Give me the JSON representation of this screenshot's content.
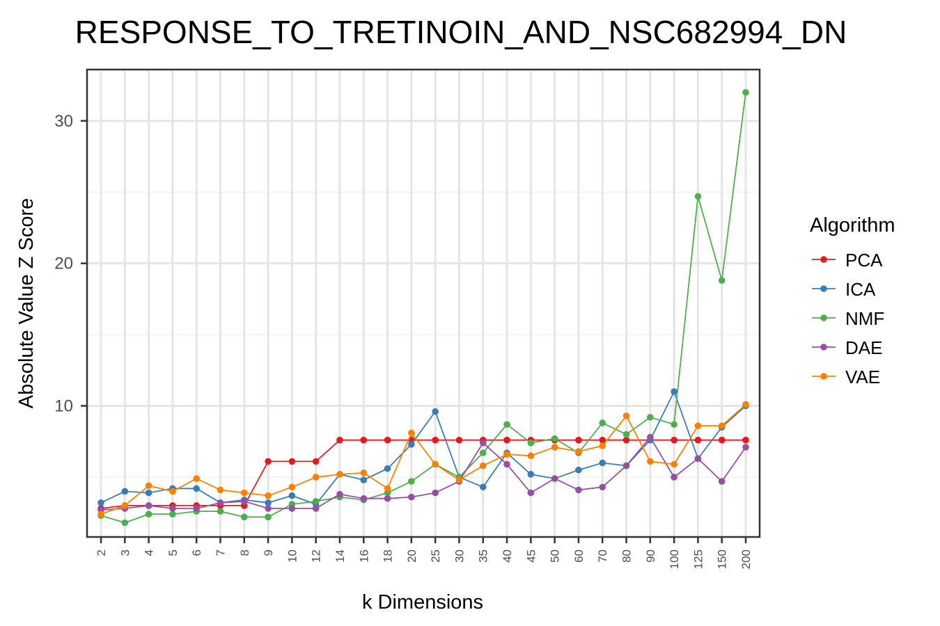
{
  "chart_data": {
    "type": "line",
    "title": "RESPONSE_TO_TRETINOIN_AND_NSC682994_DN",
    "xlabel": "k Dimensions",
    "ylabel": "Absolute Value Z Score",
    "categories": [
      "2",
      "3",
      "4",
      "5",
      "6",
      "7",
      "8",
      "9",
      "10",
      "12",
      "14",
      "16",
      "18",
      "20",
      "25",
      "30",
      "35",
      "40",
      "45",
      "50",
      "60",
      "70",
      "80",
      "90",
      "100",
      "125",
      "150",
      "200"
    ],
    "y_ticks": [
      10,
      20,
      30
    ],
    "ylim": [
      0.8,
      33.6
    ],
    "grid": true,
    "legend": {
      "title": "Algorithm",
      "position": "right"
    },
    "series": [
      {
        "name": "PCA",
        "color": "#e41a1c",
        "values": [
          2.8,
          3.0,
          3.0,
          3.0,
          3.0,
          3.0,
          3.0,
          6.1,
          6.1,
          6.1,
          7.6,
          7.6,
          7.6,
          7.6,
          7.6,
          7.6,
          7.6,
          7.6,
          7.6,
          7.6,
          7.6,
          7.6,
          7.6,
          7.6,
          7.6,
          7.6,
          7.6,
          7.6
        ]
      },
      {
        "name": "ICA",
        "color": "#377eb8",
        "values": [
          3.2,
          4.0,
          3.9,
          4.2,
          4.2,
          3.2,
          3.4,
          3.2,
          3.7,
          3.1,
          5.2,
          4.8,
          5.6,
          7.3,
          9.6,
          5.0,
          4.3,
          6.7,
          5.2,
          4.9,
          5.5,
          6.0,
          5.8,
          7.6,
          11.0,
          6.3,
          8.5,
          10.0
        ]
      },
      {
        "name": "NMF",
        "color": "#4daf4a",
        "values": [
          2.3,
          1.8,
          2.4,
          2.4,
          2.6,
          2.6,
          2.2,
          2.2,
          3.1,
          3.3,
          3.6,
          3.4,
          3.9,
          4.7,
          5.9,
          5.0,
          6.7,
          8.7,
          7.4,
          7.7,
          6.7,
          8.8,
          8.0,
          9.2,
          8.7,
          24.7,
          18.8,
          32.0
        ]
      },
      {
        "name": "DAE",
        "color": "#984ea3",
        "values": [
          2.7,
          2.8,
          3.0,
          2.8,
          2.8,
          3.2,
          3.3,
          2.8,
          2.8,
          2.8,
          3.8,
          3.5,
          3.5,
          3.6,
          3.9,
          4.7,
          7.4,
          5.9,
          3.9,
          4.9,
          4.1,
          4.3,
          5.8,
          7.8,
          5.0,
          6.3,
          4.7,
          7.1
        ]
      },
      {
        "name": "VAE",
        "color": "#ff7f00",
        "values": [
          2.4,
          3.0,
          4.4,
          4.0,
          4.9,
          4.1,
          3.9,
          3.7,
          4.3,
          5.0,
          5.2,
          5.3,
          4.2,
          8.1,
          5.9,
          4.8,
          5.8,
          6.6,
          6.5,
          7.1,
          6.8,
          7.2,
          9.3,
          6.1,
          5.9,
          8.6,
          8.6,
          10.1
        ]
      }
    ]
  }
}
